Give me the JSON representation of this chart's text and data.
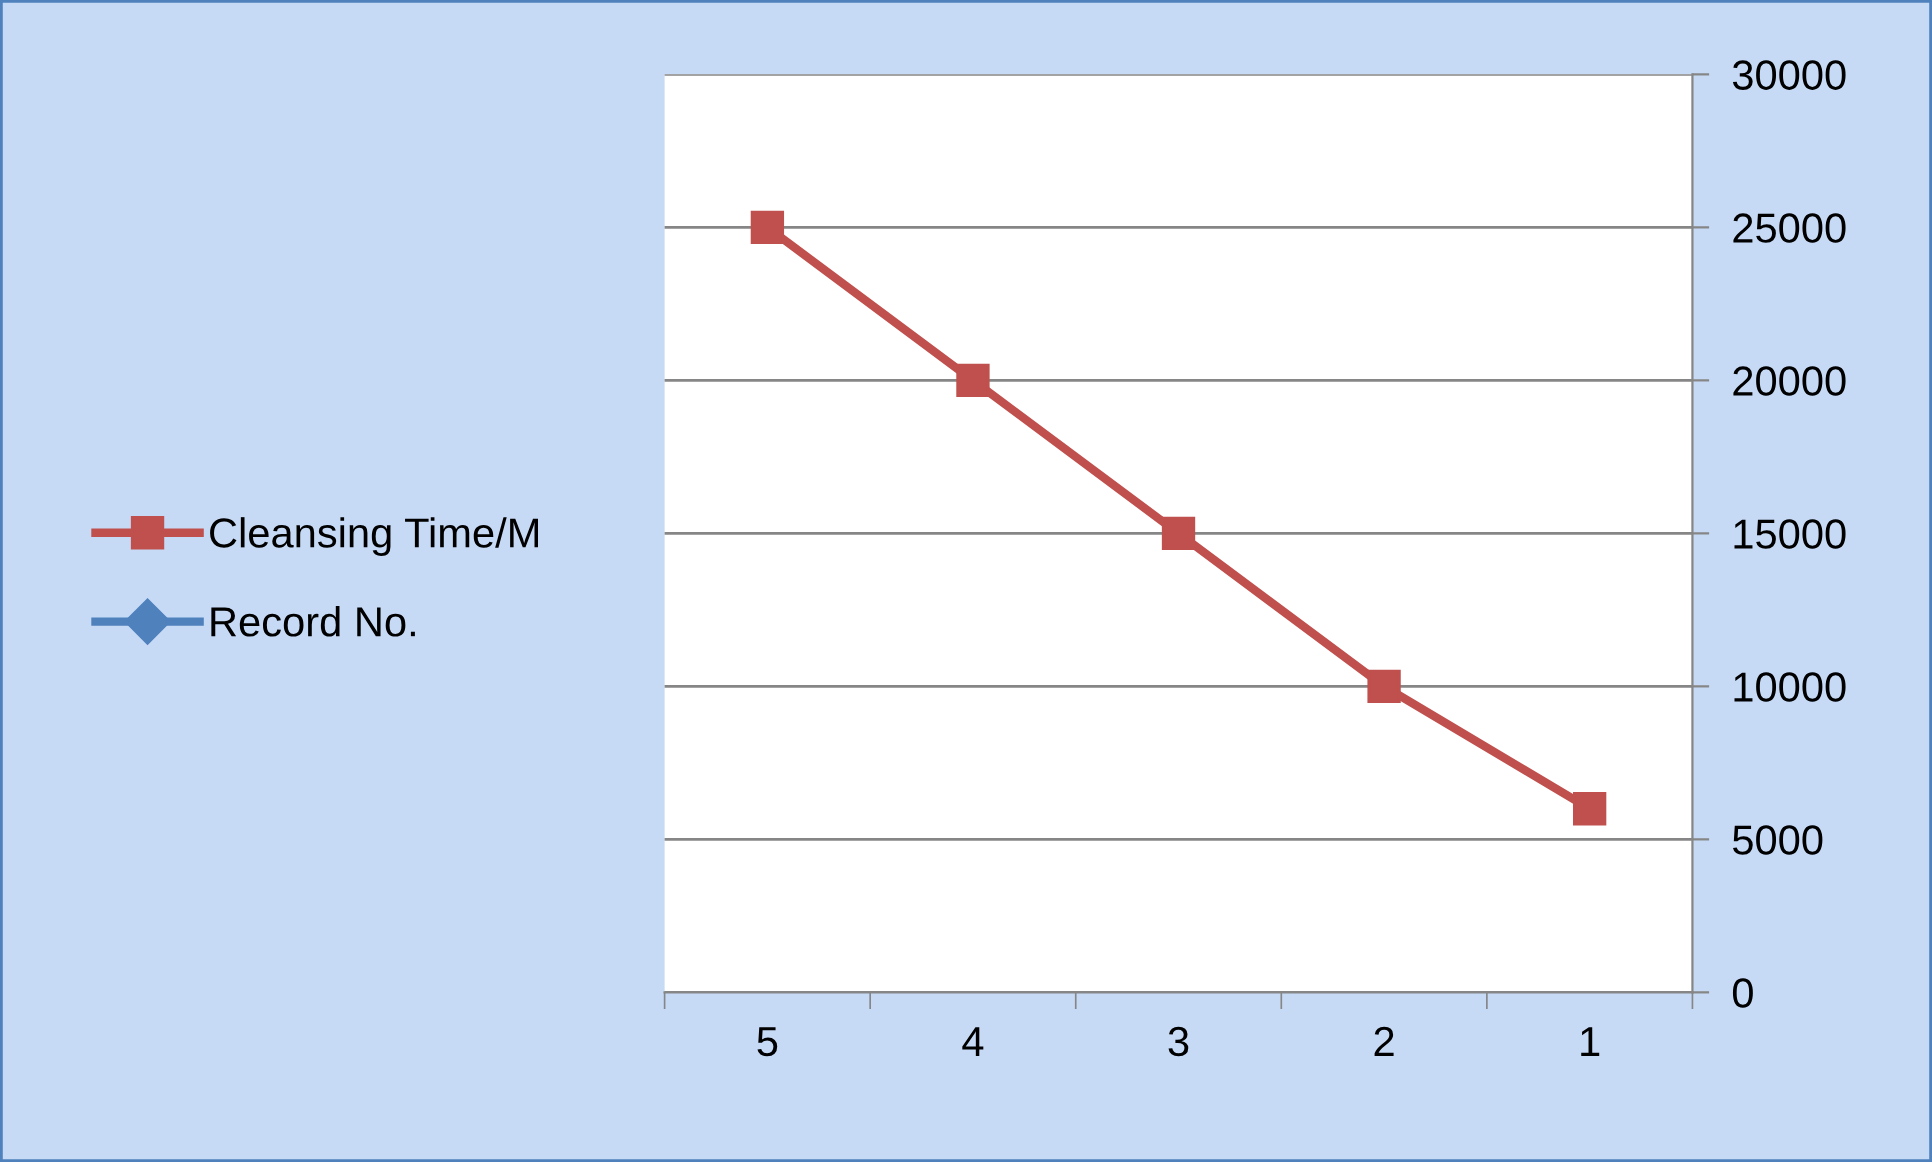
{
  "chart_data": {
    "type": "line",
    "categories": [
      "5",
      "4",
      "3",
      "2",
      "1"
    ],
    "series": [
      {
        "name": "Cleansing Time/M",
        "color": "#c0504d",
        "marker": "square",
        "values": [
          25000,
          20000,
          15000,
          10000,
          6000
        ]
      },
      {
        "name": "Record No.",
        "color": "#4f81bd",
        "marker": "diamond",
        "values": [
          null,
          null,
          null,
          null,
          null
        ]
      }
    ],
    "ylim": [
      0,
      30000
    ],
    "yticks": [
      0,
      5000,
      10000,
      15000,
      20000,
      25000,
      30000
    ],
    "grid": "y",
    "legend": "left"
  }
}
